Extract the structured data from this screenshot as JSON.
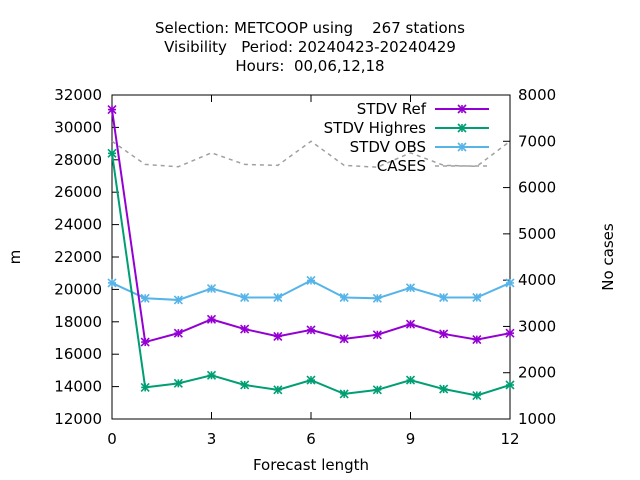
{
  "chart_data": {
    "type": "line",
    "title_lines": [
      "Selection: METCOOP using    267 stations",
      "Visibility   Period: 20240423-20240429",
      "Hours:  00,06,12,18"
    ],
    "xlabel": "Forecast length",
    "ylabel": "m",
    "y2label": "No cases",
    "x": [
      0,
      1,
      2,
      3,
      4,
      5,
      6,
      7,
      8,
      9,
      10,
      11,
      12
    ],
    "xticks": [
      0,
      3,
      6,
      9,
      12
    ],
    "xlim": [
      0,
      12
    ],
    "ylim": [
      12000,
      32000
    ],
    "yticks": [
      12000,
      14000,
      16000,
      18000,
      20000,
      22000,
      24000,
      26000,
      28000,
      30000,
      32000
    ],
    "y2lim": [
      1000,
      8000
    ],
    "y2ticks": [
      1000,
      2000,
      3000,
      4000,
      5000,
      6000,
      7000,
      8000
    ],
    "legend_position": "top-right",
    "series": [
      {
        "name": "STDV Ref",
        "axis": "y1",
        "color": "#9400d3",
        "marker": "x-star",
        "values": [
          31100,
          16750,
          17300,
          18150,
          17550,
          17100,
          17500,
          16950,
          17200,
          17850,
          17250,
          16900,
          17300
        ]
      },
      {
        "name": "STDV Highres",
        "axis": "y1",
        "color": "#009e73",
        "marker": "x-star",
        "values": [
          28400,
          13950,
          14200,
          14700,
          14100,
          13800,
          14400,
          13550,
          13800,
          14400,
          13850,
          13450,
          14100
        ]
      },
      {
        "name": "STDV OBS",
        "axis": "y1",
        "color": "#56b4e9",
        "marker": "x-star",
        "values": [
          20400,
          19450,
          19350,
          20050,
          19500,
          19500,
          20550,
          19500,
          19450,
          20100,
          19500,
          19500,
          20400
        ]
      },
      {
        "name": "CASES",
        "axis": "y2",
        "color": "#a0a0a0",
        "marker": "none",
        "dashed": true,
        "values": [
          7000,
          6500,
          6450,
          6750,
          6500,
          6480,
          7000,
          6480,
          6440,
          6750,
          6480,
          6460,
          7000
        ]
      }
    ]
  }
}
